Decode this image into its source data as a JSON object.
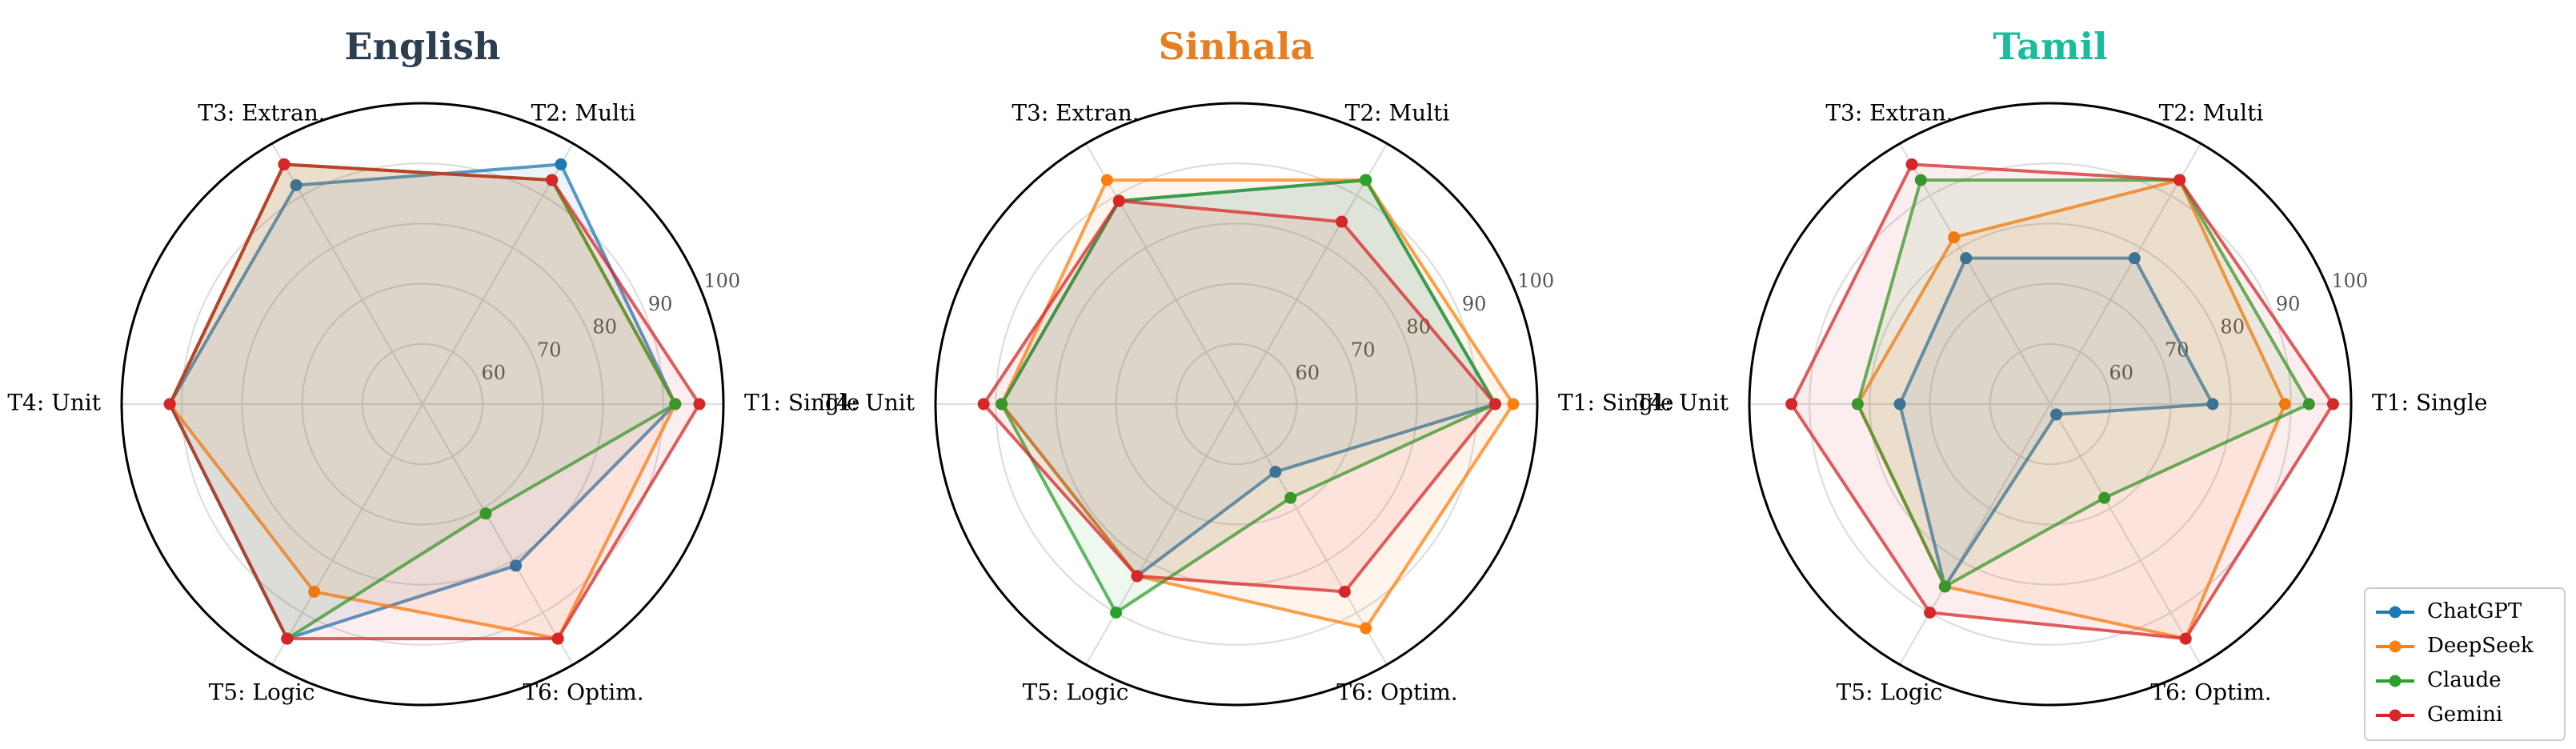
{
  "chart_data": [
    {
      "type": "radar",
      "title": "English",
      "title_color": "#2c3e50",
      "axes": [
        "T1: Single",
        "T2: Multi",
        "T3: Extran.",
        "T4: Unit",
        "T5: Logic",
        "T6: Optim."
      ],
      "rlim": [
        50,
        100
      ],
      "rticks": [
        60,
        70,
        80,
        90,
        100
      ],
      "grid": true,
      "series": [
        {
          "name": "ChatGPT",
          "values": [
            92,
            96,
            92,
            92,
            95,
            81
          ]
        },
        {
          "name": "DeepSeek",
          "values": [
            92,
            93,
            96,
            92,
            86,
            95
          ]
        },
        {
          "name": "Claude",
          "values": [
            92,
            93,
            96,
            92,
            95,
            71
          ]
        },
        {
          "name": "Gemini",
          "values": [
            96,
            93,
            96,
            92,
            95,
            95
          ]
        }
      ]
    },
    {
      "type": "radar",
      "title": "Sinhala",
      "title_color": "#e67e22",
      "axes": [
        "T1: Single",
        "T2: Multi",
        "T3: Extran.",
        "T4: Unit",
        "T5: Logic",
        "T6: Optim."
      ],
      "rlim": [
        50,
        100
      ],
      "rticks": [
        60,
        70,
        80,
        90,
        100
      ],
      "grid": true,
      "series": [
        {
          "name": "ChatGPT",
          "values": [
            93,
            93,
            89,
            89,
            83,
            63
          ]
        },
        {
          "name": "DeepSeek",
          "values": [
            96,
            93,
            93,
            89,
            83,
            93
          ]
        },
        {
          "name": "Claude",
          "values": [
            93,
            93,
            89,
            89,
            90,
            68
          ]
        },
        {
          "name": "Gemini",
          "values": [
            93,
            85,
            89,
            92,
            83,
            86
          ]
        }
      ]
    },
    {
      "type": "radar",
      "title": "Tamil",
      "title_color": "#1abc9c",
      "axes": [
        "T1: Single",
        "T2: Multi",
        "T3: Extran.",
        "T4: Unit",
        "T5: Logic",
        "T6: Optim."
      ],
      "rlim": [
        50,
        100
      ],
      "rticks": [
        60,
        70,
        80,
        90,
        100
      ],
      "grid": true,
      "series": [
        {
          "name": "ChatGPT",
          "values": [
            77,
            78,
            78,
            75,
            85,
            52
          ]
        },
        {
          "name": "DeepSeek",
          "values": [
            89,
            93,
            82,
            82,
            85,
            95
          ]
        },
        {
          "name": "Claude",
          "values": [
            93,
            93,
            93,
            82,
            85,
            68
          ]
        },
        {
          "name": "Gemini",
          "values": [
            97,
            93,
            96,
            93,
            90,
            95
          ]
        }
      ]
    }
  ],
  "legend": {
    "position": "lower-right",
    "entries": [
      "ChatGPT",
      "DeepSeek",
      "Claude",
      "Gemini"
    ]
  },
  "colors": {
    "ChatGPT": "#1f77b4",
    "DeepSeek": "#ff7f0e",
    "Claude": "#2ca02c",
    "Gemini": "#d62728"
  }
}
